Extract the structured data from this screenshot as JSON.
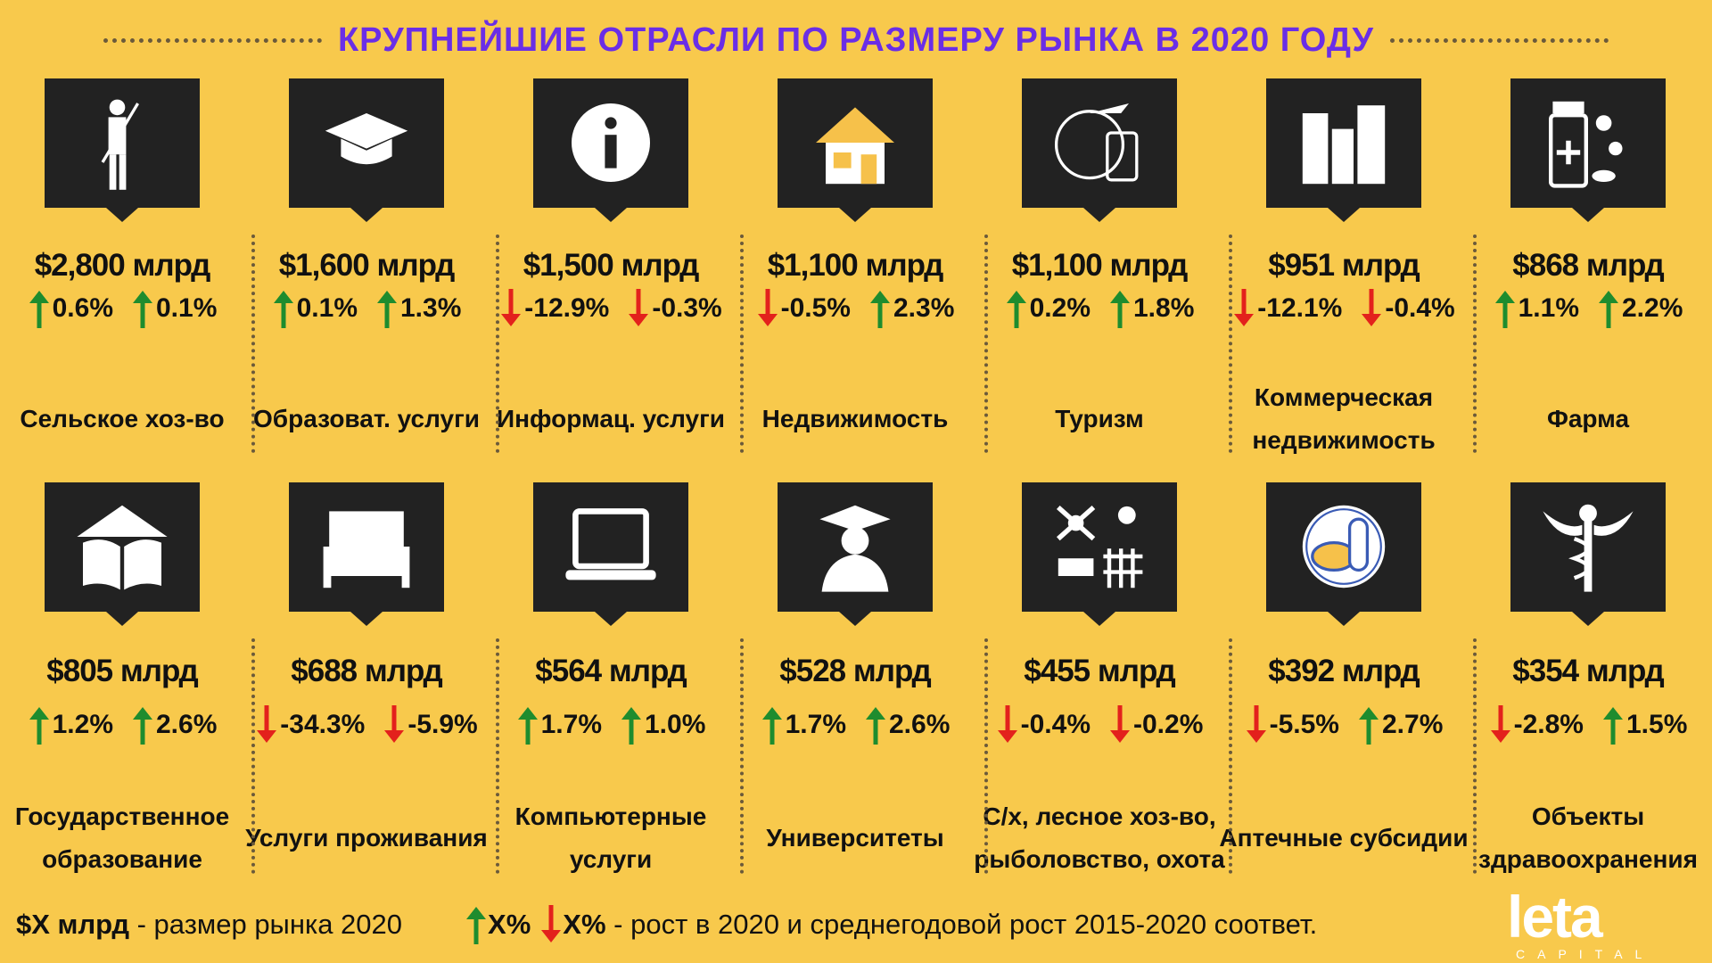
{
  "header": {
    "title": "КРУПНЕЙШИЕ ОТРАСЛИ ПО РАЗМЕРУ РЫНКА В 2020 ГОДУ"
  },
  "items": [
    {
      "market": "$2,800 млрд",
      "growth": "0.6%",
      "cagr": "0.1%",
      "label": "Сельское хоз-во"
    },
    {
      "market": "$1,600 млрд",
      "growth": "0.1%",
      "cagr": "1.3%",
      "label": "Образоват. услуги"
    },
    {
      "market": "$1,500 млрд",
      "growth": "-12.9%",
      "cagr": "-0.3%",
      "label": "Информац. услуги"
    },
    {
      "market": "$1,100 млрд",
      "growth": "-0.5%",
      "cagr": "2.3%",
      "label": "Недвижимость"
    },
    {
      "market": "$1,100 млрд",
      "growth": "0.2%",
      "cagr": "1.8%",
      "label": "Туризм"
    },
    {
      "market": "$951 млрд",
      "growth": "-12.1%",
      "cagr": "-0.4%",
      "label": "Коммерческая недвижимость"
    },
    {
      "market": "$868 млрд",
      "growth": "1.1%",
      "cagr": "2.2%",
      "label": "Фарма"
    },
    {
      "market": "$805 млрд",
      "growth": "1.2%",
      "cagr": "2.6%",
      "label": "Государственное образование"
    },
    {
      "market": "$688 млрд",
      "growth": "-34.3%",
      "cagr": "-5.9%",
      "label": "Услуги проживания"
    },
    {
      "market": "$564 млрд",
      "growth": "1.7%",
      "cagr": "1.0%",
      "label": "Компьютерные услуги"
    },
    {
      "market": "$528 млрд",
      "growth": "1.7%",
      "cagr": "2.6%",
      "label": "Университеты"
    },
    {
      "market": "$455 млрд",
      "growth": "-0.4%",
      "cagr": "-0.2%",
      "label": "С/х, лесное хоз-во, рыболовство, охота"
    },
    {
      "market": "$392 млрд",
      "growth": "-5.5%",
      "cagr": "2.7%",
      "label": "Аптечные субсидии"
    },
    {
      "market": "$354 млрд",
      "growth": "-2.8%",
      "cagr": "1.5%",
      "label": "Объекты здравоохранения"
    }
  ],
  "footer": {
    "market_key": "$X млрд",
    "market_text": "- размер рынка 2020",
    "growth_up": "X%",
    "growth_down": "X%",
    "growth_text": "- рост в 2020 и среднегодовой рост 2015-2020 соответ."
  },
  "logo": {
    "name": "leta",
    "sub": "CAPITAL"
  }
}
